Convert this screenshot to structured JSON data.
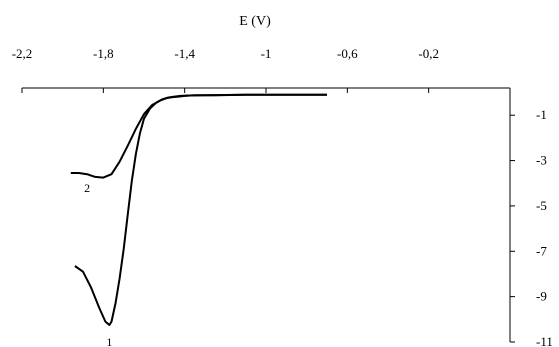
{
  "chart_data": {
    "type": "line",
    "title": "",
    "xlabel": "E (V)",
    "ylabel": "",
    "xlim": [
      -2.2,
      0.2
    ],
    "ylim": [
      -11,
      0.2
    ],
    "x_ticks": [
      -2.2,
      -1.8,
      -1.4,
      -1,
      -0.6,
      -0.2
    ],
    "x_tick_labels": [
      "-2,2",
      "-1,8",
      "-1,4",
      "-1",
      "-0,6",
      "-0,2"
    ],
    "y_ticks": [
      -1,
      -3,
      -5,
      -7,
      -9,
      -11
    ],
    "y_tick_labels": [
      "-1",
      "-3",
      "-5",
      "-7",
      "-9",
      "-11"
    ],
    "x_axis_position": "top",
    "y_axis_position": "right",
    "grid": false,
    "legend": "none",
    "annotations": [
      {
        "text": "2",
        "x": -1.88,
        "y": -4.2
      },
      {
        "text": "1",
        "x": -1.77,
        "y": -11.0
      }
    ],
    "series": [
      {
        "label": "2",
        "color": "#000000",
        "x": [
          -1.96,
          -1.92,
          -1.88,
          -1.84,
          -1.8,
          -1.76,
          -1.72,
          -1.68,
          -1.64,
          -1.6,
          -1.56,
          -1.52,
          -1.49,
          -1.46,
          -1.43,
          -1.4,
          -1.35,
          -1.25,
          -1.1,
          -0.95,
          -0.8,
          -0.7
        ],
        "y": [
          -3.55,
          -3.55,
          -3.6,
          -3.72,
          -3.75,
          -3.6,
          -3.05,
          -2.35,
          -1.6,
          -0.95,
          -0.55,
          -0.35,
          -0.25,
          -0.2,
          -0.18,
          -0.15,
          -0.12,
          -0.12,
          -0.1,
          -0.1,
          -0.1,
          -0.1
        ]
      },
      {
        "label": "1",
        "color": "#000000",
        "x": [
          -1.94,
          -1.9,
          -1.86,
          -1.82,
          -1.79,
          -1.77,
          -1.76,
          -1.74,
          -1.72,
          -1.7,
          -1.68,
          -1.66,
          -1.64,
          -1.62,
          -1.6,
          -1.57,
          -1.54,
          -1.51,
          -1.48,
          -1.45,
          -1.42,
          -1.38,
          -1.3,
          -1.1,
          -0.9,
          -0.7
        ],
        "y": [
          -7.65,
          -7.9,
          -8.6,
          -9.5,
          -10.1,
          -10.25,
          -10.1,
          -9.3,
          -8.2,
          -6.9,
          -5.4,
          -3.9,
          -2.7,
          -1.8,
          -1.15,
          -0.7,
          -0.45,
          -0.3,
          -0.22,
          -0.18,
          -0.15,
          -0.13,
          -0.12,
          -0.1,
          -0.1,
          -0.1
        ]
      }
    ]
  }
}
